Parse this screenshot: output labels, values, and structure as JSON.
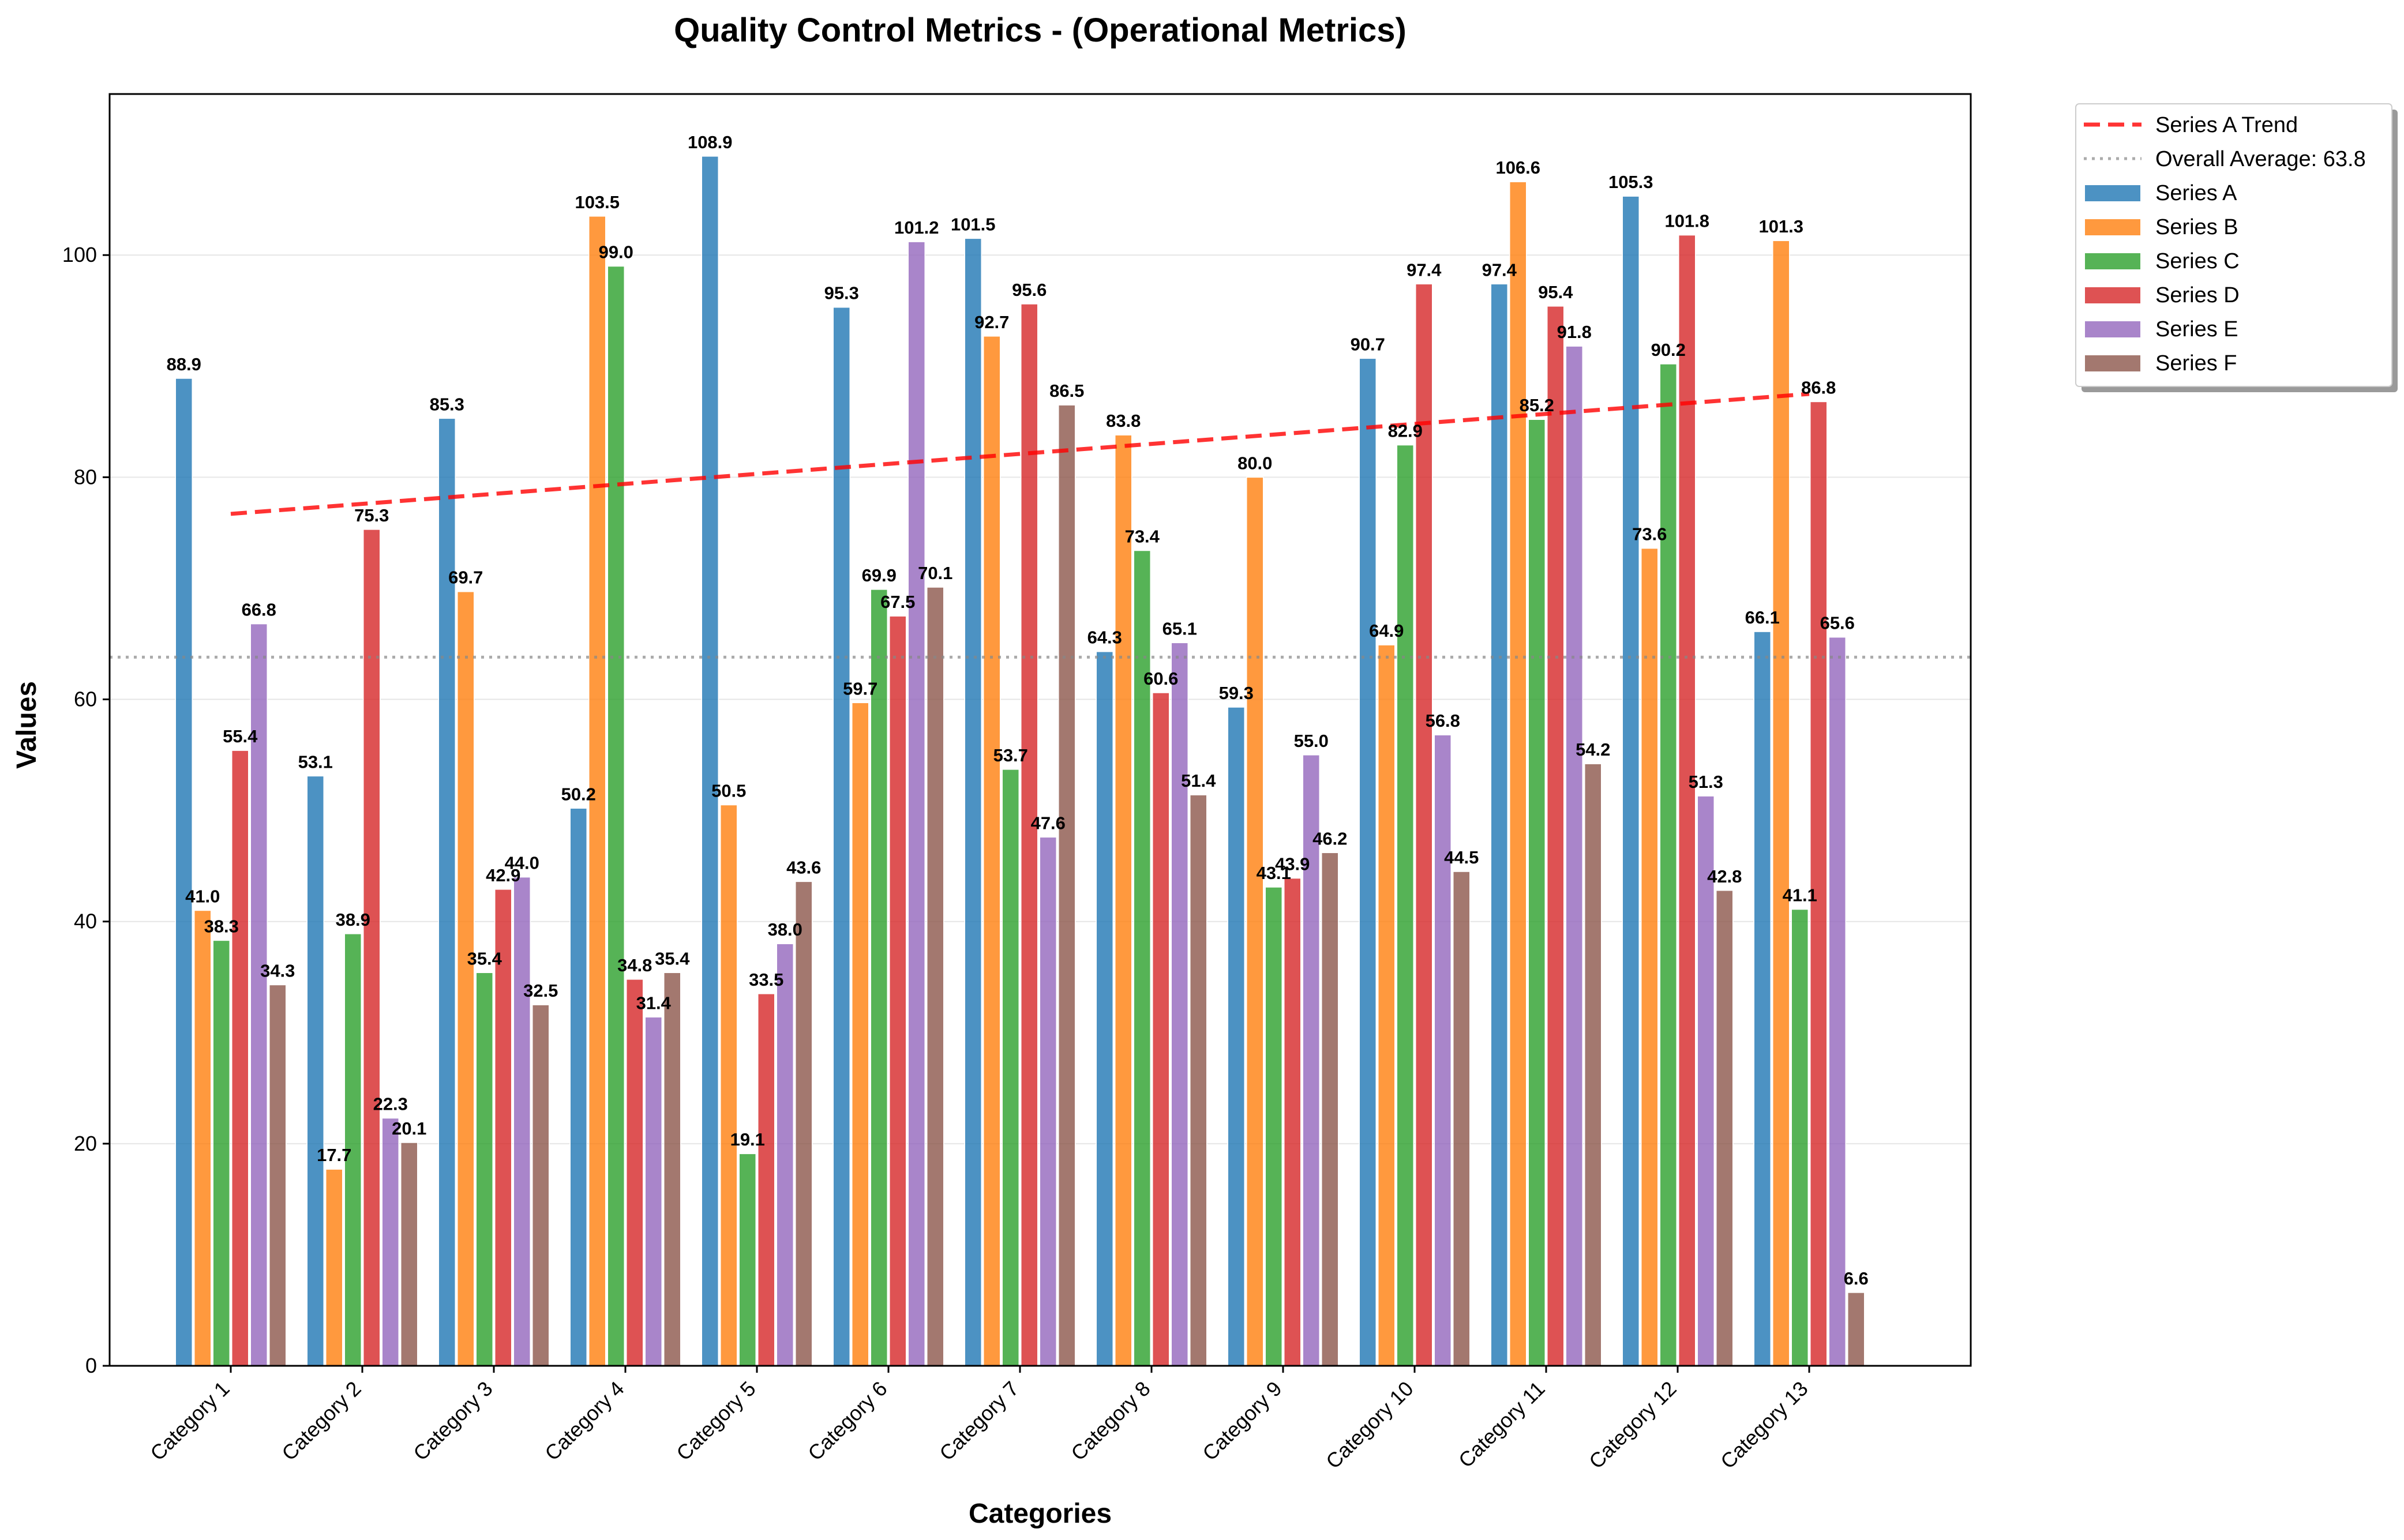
{
  "chart_data": {
    "type": "bar",
    "title": "Quality Control Metrics - (Operational Metrics)",
    "xlabel": "Categories",
    "ylabel": "Values",
    "ylim": [
      0,
      114.5
    ],
    "yticks": [
      0,
      20,
      40,
      60,
      80,
      100
    ],
    "grid": "y",
    "legend_position": "outside top-right",
    "categories": [
      "Category 1",
      "Category 2",
      "Category 3",
      "Category 4",
      "Category 5",
      "Category 6",
      "Category 7",
      "Category 8",
      "Category 9",
      "Category 10",
      "Category 11",
      "Category 12",
      "Category 13"
    ],
    "series": [
      {
        "name": "Series A",
        "color": "#1f77b4",
        "values": [
          88.9,
          53.1,
          85.3,
          50.2,
          108.9,
          95.3,
          101.5,
          64.3,
          59.3,
          90.7,
          97.4,
          105.3,
          66.1
        ]
      },
      {
        "name": "Series B",
        "color": "#ff7f0e",
        "values": [
          41.0,
          17.7,
          69.7,
          103.5,
          50.5,
          59.7,
          92.7,
          83.8,
          80.0,
          64.9,
          106.6,
          73.6,
          101.3
        ]
      },
      {
        "name": "Series C",
        "color": "#2ca02c",
        "values": [
          38.3,
          38.9,
          35.4,
          99.0,
          19.1,
          69.9,
          53.7,
          73.4,
          43.1,
          82.9,
          85.2,
          90.2,
          41.1
        ]
      },
      {
        "name": "Series D",
        "color": "#d62728",
        "values": [
          55.4,
          75.3,
          42.9,
          34.8,
          33.5,
          67.5,
          95.6,
          60.6,
          43.9,
          97.4,
          95.4,
          101.8,
          86.8
        ]
      },
      {
        "name": "Series E",
        "color": "#9467bd",
        "values": [
          66.8,
          22.3,
          44.0,
          31.4,
          38.0,
          101.2,
          47.6,
          65.1,
          55.0,
          56.8,
          91.8,
          51.3,
          65.6
        ]
      },
      {
        "name": "Series F",
        "color": "#8c564b",
        "values": [
          34.3,
          20.1,
          32.5,
          35.4,
          43.6,
          70.1,
          86.5,
          51.4,
          46.2,
          44.5,
          54.2,
          42.8,
          6.6
        ]
      }
    ],
    "trend": {
      "name": "Series A Trend",
      "color": "#ff0000",
      "start": 76.7,
      "end": 87.5
    },
    "average": {
      "name": "Overall Average: 63.8",
      "value": 63.8,
      "color": "#888888"
    }
  }
}
